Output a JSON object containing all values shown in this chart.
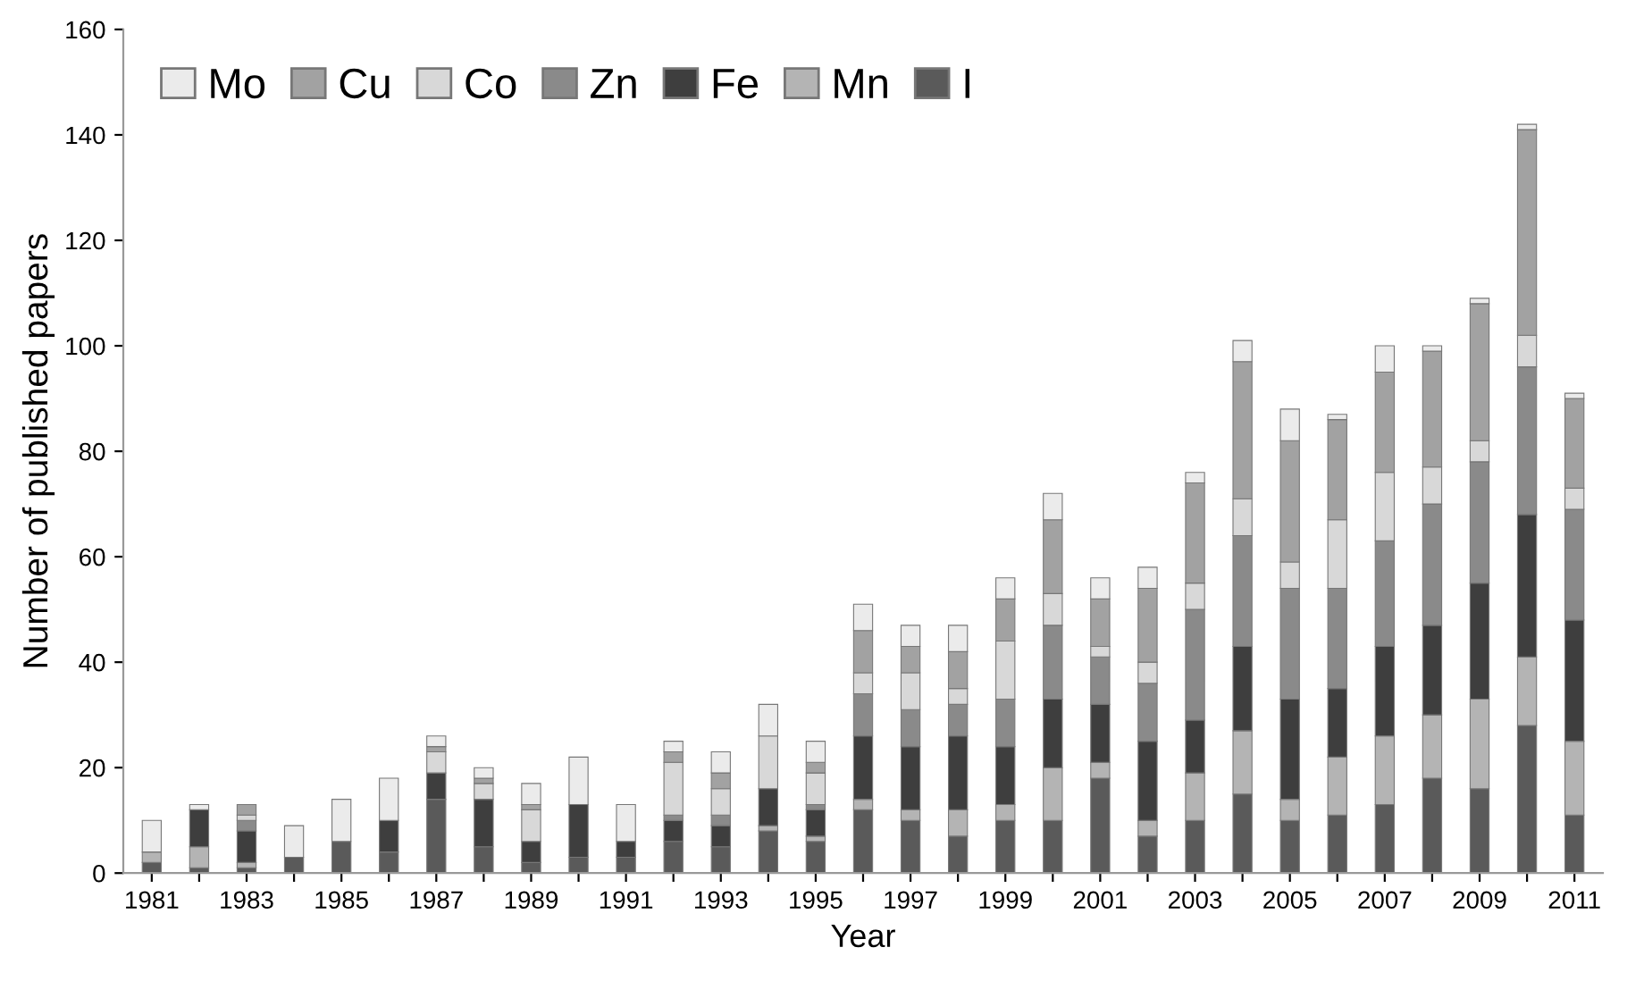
{
  "chart_data": {
    "type": "bar",
    "stacked": true,
    "xlabel": "Year",
    "ylabel": "Number of published papers",
    "categories": [
      "1981",
      null,
      "1983",
      null,
      "1985",
      null,
      "1987",
      null,
      "1989",
      null,
      "1991",
      null,
      "1993",
      null,
      "1995",
      null,
      "1997",
      null,
      "1999",
      null,
      "2001",
      null,
      "2003",
      null,
      "2005",
      null,
      "2007",
      null,
      "2009",
      null,
      "2011"
    ],
    "ylim": [
      0,
      160
    ],
    "yticks": [
      0,
      20,
      40,
      60,
      80,
      100,
      120,
      140,
      160
    ],
    "grid": false,
    "legend": "top left",
    "series": [
      {
        "name": "I",
        "color": "#5a5a5a",
        "values": [
          2,
          1,
          1,
          3,
          6,
          4,
          14,
          5,
          2,
          3,
          3,
          6,
          5,
          8,
          6,
          12,
          10,
          7,
          10,
          10,
          18,
          7,
          10,
          15,
          10,
          11,
          13,
          18,
          16,
          28,
          11
        ]
      },
      {
        "name": "Mn",
        "color": "#b4b4b4",
        "values": [
          2,
          4,
          1,
          0,
          0,
          0,
          0,
          0,
          0,
          0,
          0,
          0,
          0,
          1,
          1,
          2,
          2,
          5,
          3,
          10,
          3,
          3,
          9,
          12,
          4,
          11,
          13,
          12,
          17,
          13,
          14
        ]
      },
      {
        "name": "Fe",
        "color": "#3e3e3e",
        "values": [
          0,
          7,
          6,
          0,
          0,
          6,
          5,
          9,
          4,
          10,
          3,
          4,
          4,
          7,
          5,
          12,
          12,
          14,
          11,
          13,
          11,
          15,
          10,
          16,
          19,
          13,
          17,
          17,
          22,
          27,
          23
        ]
      },
      {
        "name": "Zn",
        "color": "#8a8a8a",
        "values": [
          0,
          0,
          2,
          0,
          0,
          0,
          0,
          0,
          0,
          0,
          0,
          1,
          2,
          0,
          1,
          8,
          7,
          6,
          9,
          14,
          9,
          11,
          21,
          21,
          21,
          19,
          20,
          23,
          23,
          28,
          21
        ]
      },
      {
        "name": "Co",
        "color": "#d8d8d8",
        "values": [
          0,
          0,
          1,
          0,
          0,
          0,
          4,
          3,
          6,
          0,
          0,
          10,
          5,
          10,
          6,
          4,
          7,
          3,
          11,
          6,
          2,
          4,
          5,
          7,
          5,
          13,
          13,
          7,
          4,
          6,
          4
        ]
      },
      {
        "name": "Cu",
        "color": "#a2a2a2",
        "values": [
          0,
          0,
          2,
          0,
          0,
          0,
          1,
          1,
          1,
          0,
          0,
          2,
          3,
          0,
          2,
          8,
          5,
          7,
          8,
          14,
          9,
          14,
          19,
          26,
          23,
          19,
          19,
          22,
          26,
          39,
          17
        ]
      },
      {
        "name": "Mo",
        "color": "#ebebeb",
        "values": [
          6,
          1,
          0,
          6,
          8,
          8,
          2,
          2,
          4,
          9,
          7,
          2,
          4,
          6,
          4,
          5,
          4,
          5,
          4,
          5,
          4,
          4,
          2,
          4,
          6,
          1,
          5,
          1,
          1,
          1,
          1
        ]
      }
    ]
  }
}
